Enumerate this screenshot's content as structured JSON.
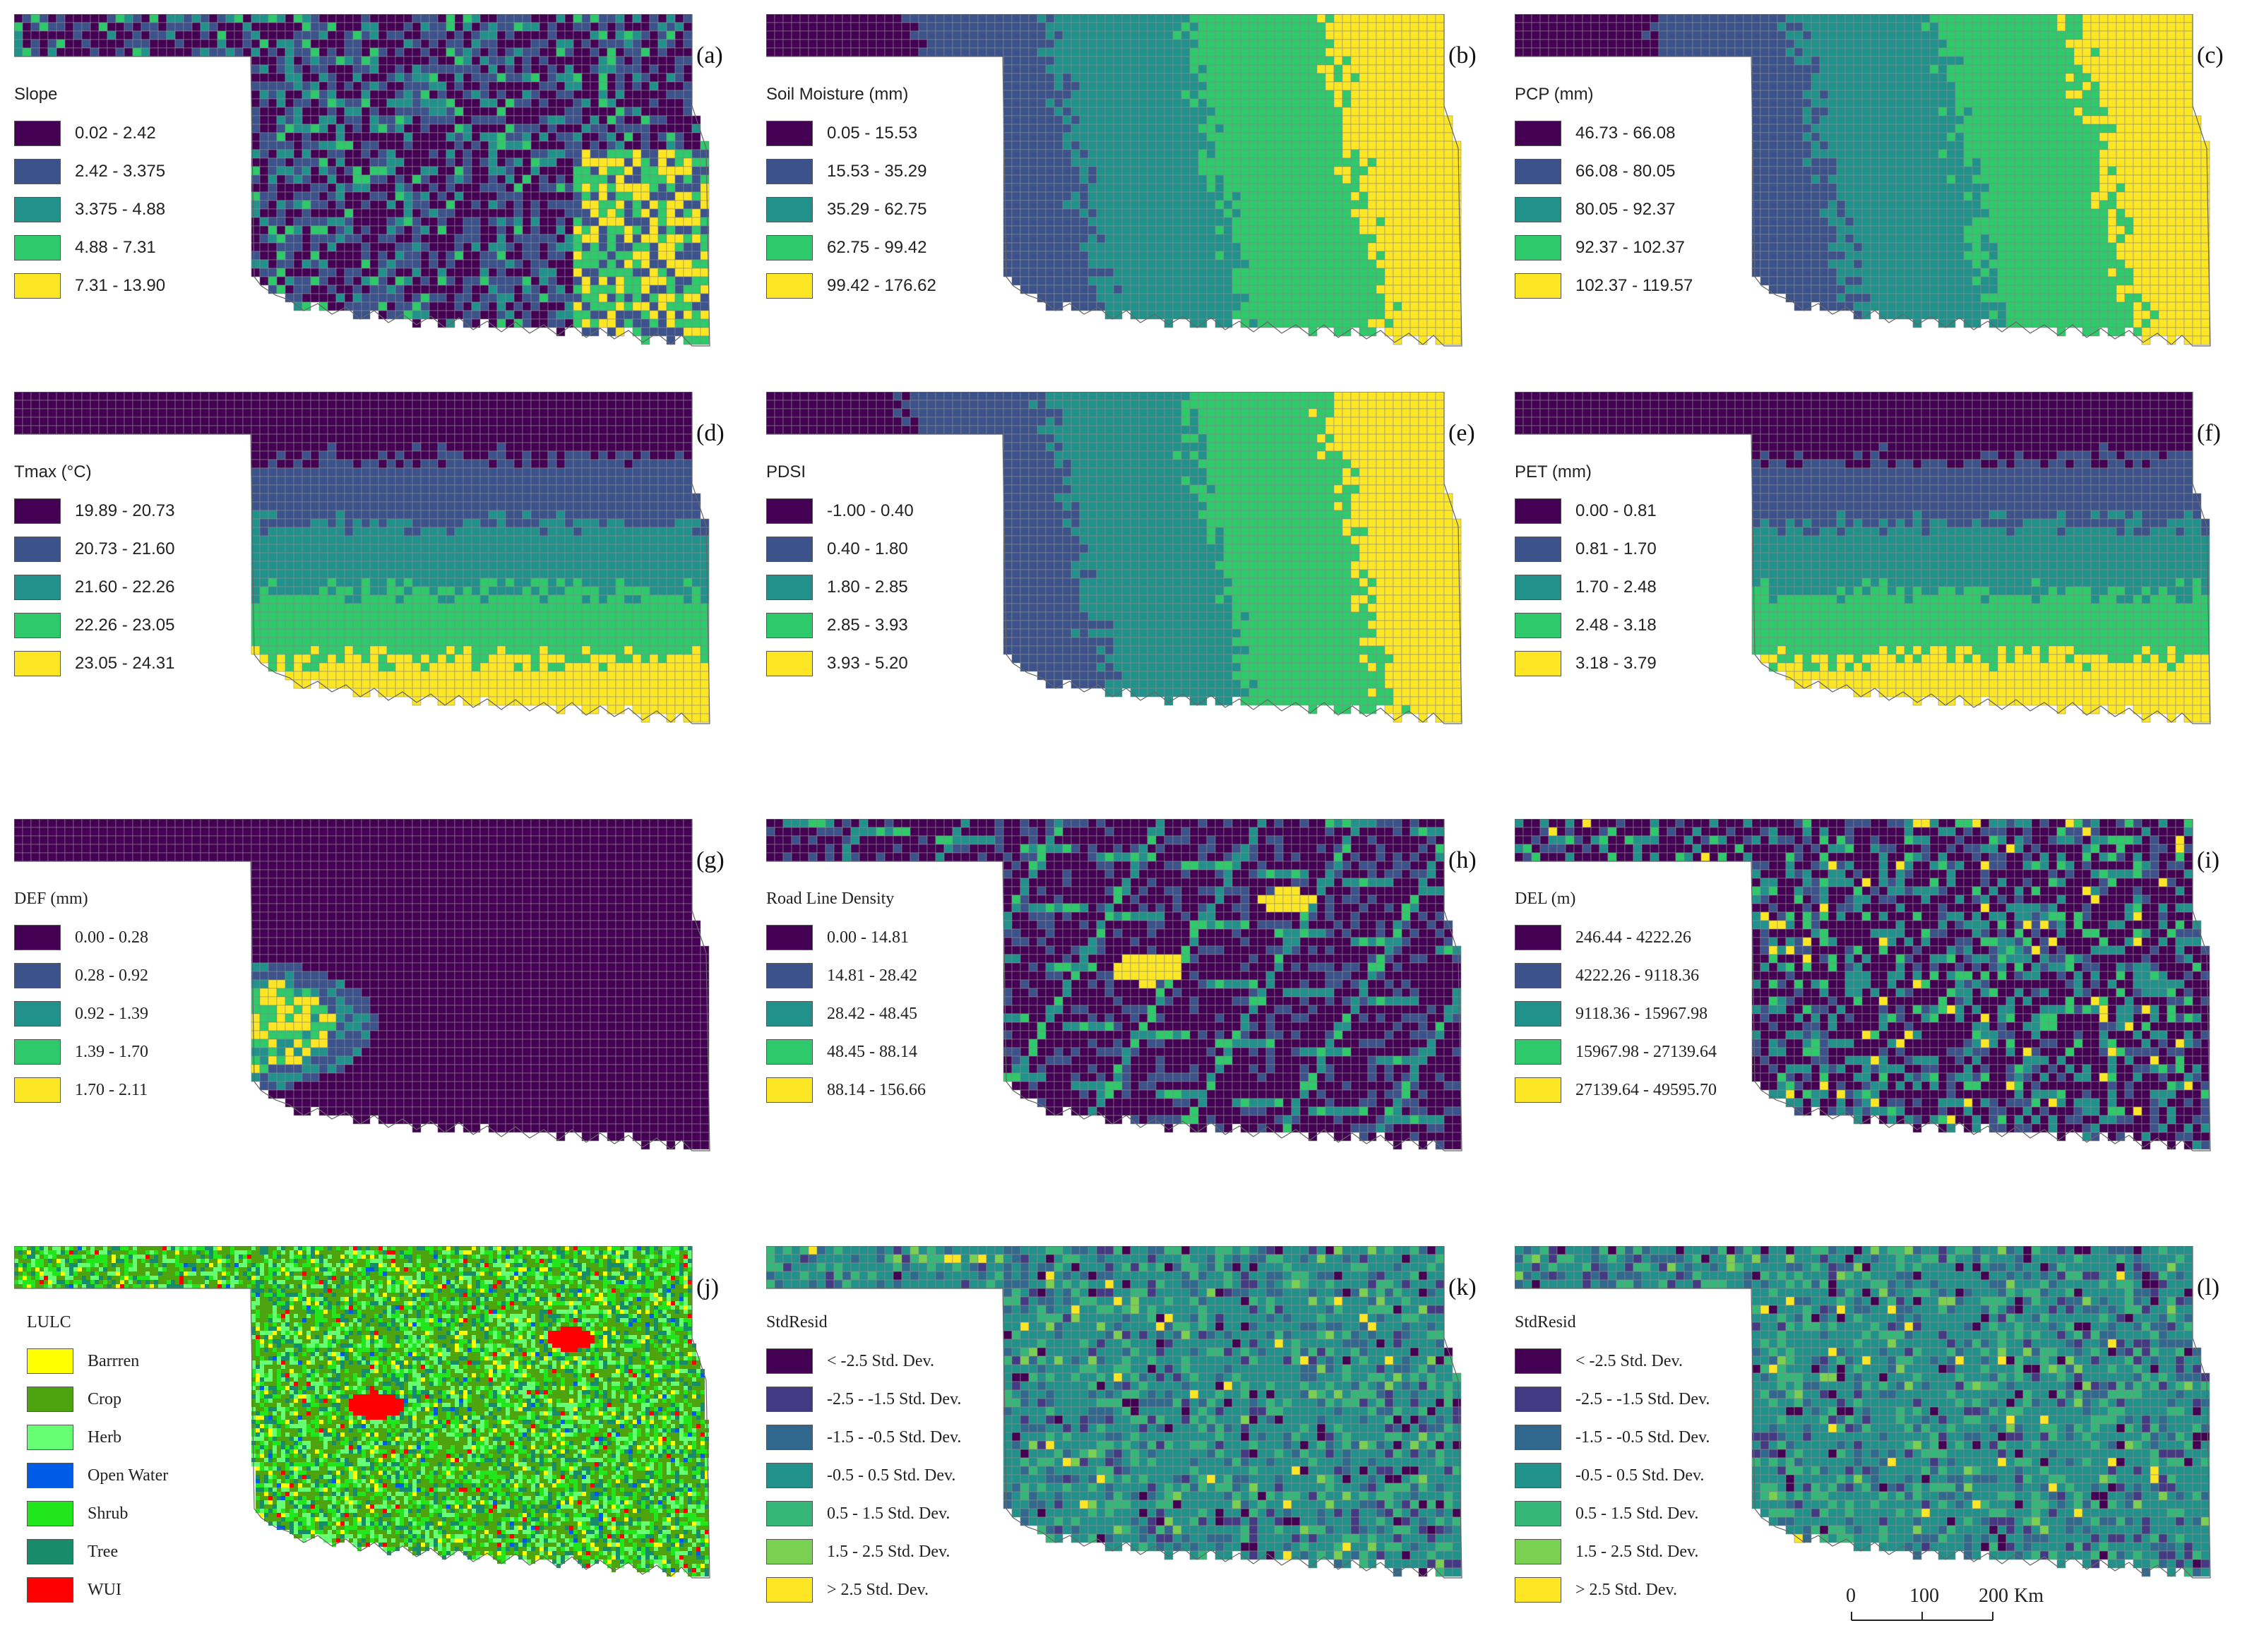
{
  "figure": {
    "panels": [
      {
        "id": "a",
        "label": "(a)",
        "legend_title": "Slope",
        "grid": true,
        "map_pattern": "slope",
        "classes": [
          {
            "label": "0.02 - 2.42",
            "color": "#440154"
          },
          {
            "label": "2.42 - 3.375",
            "color": "#3b528b"
          },
          {
            "label": "3.375 - 4.88",
            "color": "#21918c"
          },
          {
            "label": "4.88 - 7.31",
            "color": "#2ec96a"
          },
          {
            "label": "7.31 - 13.90",
            "color": "#fde725"
          }
        ]
      },
      {
        "id": "b",
        "label": "(b)",
        "legend_title": "Soil Moisture (mm)",
        "grid": true,
        "map_pattern": "west-east gradient",
        "classes": [
          {
            "label": "0.05 - 15.53",
            "color": "#440154"
          },
          {
            "label": "15.53 - 35.29",
            "color": "#3b528b"
          },
          {
            "label": "35.29 - 62.75",
            "color": "#21918c"
          },
          {
            "label": "62.75 - 99.42",
            "color": "#2ec96a"
          },
          {
            "label": "99.42 - 176.62",
            "color": "#fde725"
          }
        ]
      },
      {
        "id": "c",
        "label": "(c)",
        "legend_title": "PCP (mm)",
        "grid": true,
        "map_pattern": "west-east gradient",
        "classes": [
          {
            "label": "46.73 - 66.08",
            "color": "#440154"
          },
          {
            "label": "66.08 - 80.05",
            "color": "#3b528b"
          },
          {
            "label": "80.05 - 92.37",
            "color": "#21918c"
          },
          {
            "label": "92.37 - 102.37",
            "color": "#2ec96a"
          },
          {
            "label": "102.37 - 119.57",
            "color": "#fde725"
          }
        ]
      },
      {
        "id": "d",
        "label": "(d)",
        "legend_title": "Tmax (°C)",
        "grid": true,
        "map_pattern": "north-south gradient",
        "classes": [
          {
            "label": "19.89 - 20.73",
            "color": "#440154"
          },
          {
            "label": "20.73 - 21.60",
            "color": "#3b528b"
          },
          {
            "label": "21.60 - 22.26",
            "color": "#21918c"
          },
          {
            "label": "22.26 - 23.05",
            "color": "#2ec96a"
          },
          {
            "label": "23.05 - 24.31",
            "color": "#fde725"
          }
        ]
      },
      {
        "id": "e",
        "label": "(e)",
        "legend_title": "PDSI",
        "grid": true,
        "map_pattern": "west-east gradient",
        "classes": [
          {
            "label": "-1.00 - 0.40",
            "color": "#440154"
          },
          {
            "label": "0.40 - 1.80",
            "color": "#3b528b"
          },
          {
            "label": "1.80 - 2.85",
            "color": "#21918c"
          },
          {
            "label": "2.85 - 3.93",
            "color": "#2ec96a"
          },
          {
            "label": "3.93 - 5.20",
            "color": "#fde725"
          }
        ]
      },
      {
        "id": "f",
        "label": "(f)",
        "legend_title": "PET (mm)",
        "grid": true,
        "map_pattern": "north-south gradient",
        "classes": [
          {
            "label": "0.00 - 0.81",
            "color": "#440154"
          },
          {
            "label": "0.81 - 1.70",
            "color": "#3b528b"
          },
          {
            "label": "1.70 - 2.48",
            "color": "#21918c"
          },
          {
            "label": "2.48 - 3.18",
            "color": "#2ec96a"
          },
          {
            "label": "3.18 - 3.79",
            "color": "#fde725"
          }
        ]
      },
      {
        "id": "g",
        "label": "(g)",
        "legend_title": "DEF (mm)",
        "grid": true,
        "map_pattern": "southwest hotspot",
        "classes": [
          {
            "label": "0.00 - 0.28",
            "color": "#440154"
          },
          {
            "label": "0.28 - 0.92",
            "color": "#3b528b"
          },
          {
            "label": "0.92 - 1.39",
            "color": "#21918c"
          },
          {
            "label": "1.39 - 1.70",
            "color": "#2ec96a"
          },
          {
            "label": "1.70 - 2.11",
            "color": "#fde725"
          }
        ]
      },
      {
        "id": "h",
        "label": "(h)",
        "legend_title": "Road Line Density",
        "grid": true,
        "map_pattern": "road network",
        "classes": [
          {
            "label": "0.00 - 14.81",
            "color": "#440154"
          },
          {
            "label": "14.81 - 28.42",
            "color": "#3b528b"
          },
          {
            "label": "28.42 - 48.45",
            "color": "#21918c"
          },
          {
            "label": "48.45 - 88.14",
            "color": "#2ec96a"
          },
          {
            "label": "88.14 - 156.66",
            "color": "#fde725"
          }
        ]
      },
      {
        "id": "i",
        "label": "(i)",
        "legend_title": "DEL (m)",
        "grid": true,
        "map_pattern": "scattered patches",
        "classes": [
          {
            "label": "246.44 - 4222.26",
            "color": "#440154"
          },
          {
            "label": "4222.26 - 9118.36",
            "color": "#3b528b"
          },
          {
            "label": "9118.36 - 15967.98",
            "color": "#21918c"
          },
          {
            "label": "15967.98 - 27139.64",
            "color": "#2ec96a"
          },
          {
            "label": "27139.64 - 49595.70",
            "color": "#fde725"
          }
        ]
      },
      {
        "id": "j",
        "label": "(j)",
        "legend_title": "LULC",
        "grid": false,
        "map_pattern": "land cover",
        "classes": [
          {
            "label": "Barrren",
            "color": "#ffff00"
          },
          {
            "label": "Crop",
            "color": "#4ea40f"
          },
          {
            "label": "Herb",
            "color": "#66ff73"
          },
          {
            "label": "Open Water",
            "color": "#005ce6"
          },
          {
            "label": "Shrub",
            "color": "#22e61c"
          },
          {
            "label": "Tree",
            "color": "#168c6a"
          },
          {
            "label": "WUI",
            "color": "#ff0000"
          }
        ]
      },
      {
        "id": "k",
        "label": "(k)",
        "legend_title": "StdResid",
        "grid": true,
        "map_pattern": "residuals",
        "classes": [
          {
            "label": "< -2.5 Std. Dev.",
            "color": "#440154"
          },
          {
            "label": "-2.5 - -1.5 Std. Dev.",
            "color": "#443983"
          },
          {
            "label": "-1.5 - -0.5 Std. Dev.",
            "color": "#31688e"
          },
          {
            "label": "-0.5 - 0.5 Std. Dev.",
            "color": "#21918c"
          },
          {
            "label": "0.5 - 1.5 Std. Dev.",
            "color": "#35b779"
          },
          {
            "label": "1.5 - 2.5 Std. Dev.",
            "color": "#7ad151"
          },
          {
            "label": "> 2.5 Std. Dev.",
            "color": "#fde725"
          }
        ]
      },
      {
        "id": "l",
        "label": "(l)",
        "legend_title": "StdResid",
        "grid": true,
        "map_pattern": "residuals",
        "classes": [
          {
            "label": "< -2.5 Std. Dev.",
            "color": "#440154"
          },
          {
            "label": "-2.5 - -1.5 Std. Dev.",
            "color": "#443983"
          },
          {
            "label": "-1.5 - -0.5 Std. Dev.",
            "color": "#31688e"
          },
          {
            "label": "-0.5 - 0.5 Std. Dev.",
            "color": "#21918c"
          },
          {
            "label": "0.5 - 1.5 Std. Dev.",
            "color": "#35b779"
          },
          {
            "label": "1.5 - 2.5 Std. Dev.",
            "color": "#7ad151"
          },
          {
            "label": "> 2.5 Std. Dev.",
            "color": "#fde725"
          }
        ]
      }
    ],
    "scale_bar": {
      "ticks": [
        "0",
        "100",
        "200"
      ],
      "unit": "Km"
    }
  }
}
